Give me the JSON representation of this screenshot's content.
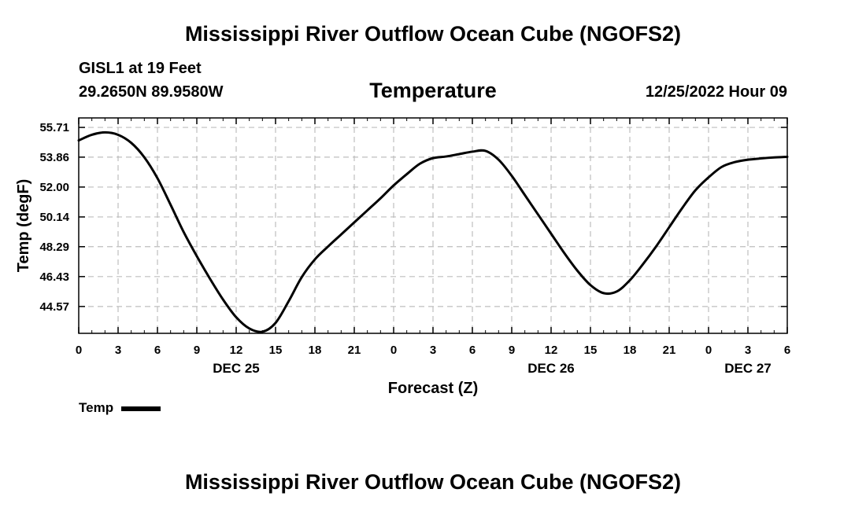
{
  "page_title": "Mississippi River Outflow Ocean Cube (NGOFS2)",
  "station": "GISL1 at 19 Feet",
  "coordinates": "29.2650N  89.9580W",
  "timestamp": "12/25/2022 Hour 09",
  "footer_title": "Mississippi River Outflow Ocean Cube (NGOFS2)",
  "chart_data": {
    "type": "line",
    "title": "Temperature",
    "xlabel": "Forecast (Z)",
    "ylabel": "Temp (degF)",
    "xlim": [
      0,
      54
    ],
    "ylim": [
      42.9,
      56.3
    ],
    "grid": true,
    "legend_position": "bottom-left",
    "x_ticks": [
      0,
      3,
      6,
      9,
      12,
      15,
      18,
      21,
      24,
      27,
      30,
      33,
      36,
      39,
      42,
      45,
      48,
      51,
      54
    ],
    "x_tick_labels": [
      "0",
      "3",
      "6",
      "9",
      "12",
      "15",
      "18",
      "21",
      "0",
      "3",
      "6",
      "9",
      "12",
      "15",
      "18",
      "21",
      "0",
      "3",
      "6"
    ],
    "day_labels": [
      {
        "x": 12,
        "label": "DEC 25"
      },
      {
        "x": 36,
        "label": "DEC 26"
      },
      {
        "x": 51,
        "label": "DEC 27"
      }
    ],
    "y_ticks": [
      44.57,
      46.43,
      48.29,
      50.14,
      52.0,
      53.86,
      55.71
    ],
    "y_tick_labels": [
      "44.57",
      "46.43",
      "48.29",
      "50.14",
      "52.00",
      "53.86",
      "55.71"
    ],
    "series": [
      {
        "name": "Temp",
        "color": "#000000",
        "x": [
          0,
          1,
          2,
          3,
          4,
          5,
          6,
          7,
          8,
          9,
          10,
          11,
          12,
          13,
          14,
          15,
          16,
          17,
          18,
          19,
          20,
          21,
          22,
          23,
          24,
          25,
          26,
          27,
          28,
          29,
          30,
          31,
          32,
          33,
          34,
          35,
          36,
          37,
          38,
          39,
          40,
          41,
          42,
          43,
          44,
          45,
          46,
          47,
          48,
          49,
          50,
          51,
          52,
          53,
          54
        ],
        "y": [
          54.9,
          55.25,
          55.4,
          55.25,
          54.75,
          53.85,
          52.55,
          50.9,
          49.2,
          47.7,
          46.3,
          45.0,
          43.9,
          43.2,
          43.0,
          43.55,
          44.9,
          46.4,
          47.5,
          48.3,
          49.05,
          49.8,
          50.55,
          51.3,
          52.1,
          52.8,
          53.45,
          53.8,
          53.9,
          54.05,
          54.2,
          54.25,
          53.7,
          52.7,
          51.5,
          50.3,
          49.1,
          47.9,
          46.8,
          45.9,
          45.4,
          45.5,
          46.2,
          47.2,
          48.3,
          49.5,
          50.7,
          51.8,
          52.6,
          53.25,
          53.55,
          53.7,
          53.78,
          53.84,
          53.88
        ]
      }
    ]
  },
  "legend": {
    "label": "Temp"
  }
}
